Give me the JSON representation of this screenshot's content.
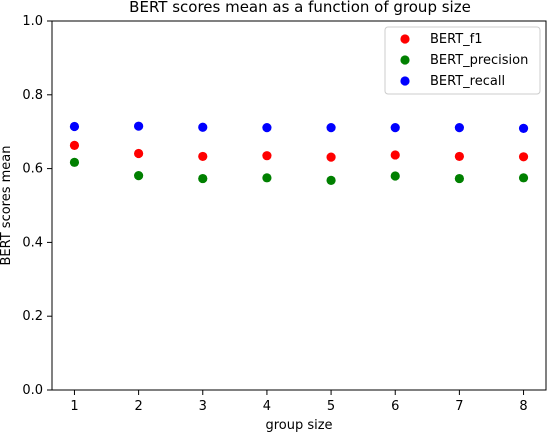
{
  "chart_data": {
    "type": "scatter",
    "title": "BERT scores mean as a function of group size",
    "xlabel": "group size",
    "ylabel": "BERT scores mean",
    "x": [
      1,
      2,
      3,
      4,
      5,
      6,
      7,
      8
    ],
    "xlim": [
      0.65,
      8.35
    ],
    "ylim": [
      0,
      1
    ],
    "x_ticks": [
      "1",
      "2",
      "3",
      "4",
      "5",
      "6",
      "7",
      "8"
    ],
    "y_ticks": [
      "0.0",
      "0.2",
      "0.4",
      "0.6",
      "0.8",
      "1.0"
    ],
    "legend_position": "top-right",
    "grid": false,
    "series": [
      {
        "name": "BERT_f1",
        "color": "#ff0000",
        "values": [
          0.663,
          0.641,
          0.633,
          0.635,
          0.631,
          0.637,
          0.633,
          0.632
        ]
      },
      {
        "name": "BERT_precision",
        "color": "#008000",
        "values": [
          0.617,
          0.581,
          0.573,
          0.575,
          0.568,
          0.58,
          0.573,
          0.575
        ]
      },
      {
        "name": "BERT_recall",
        "color": "#0000ff",
        "values": [
          0.714,
          0.715,
          0.712,
          0.711,
          0.711,
          0.711,
          0.711,
          0.709
        ]
      }
    ]
  }
}
